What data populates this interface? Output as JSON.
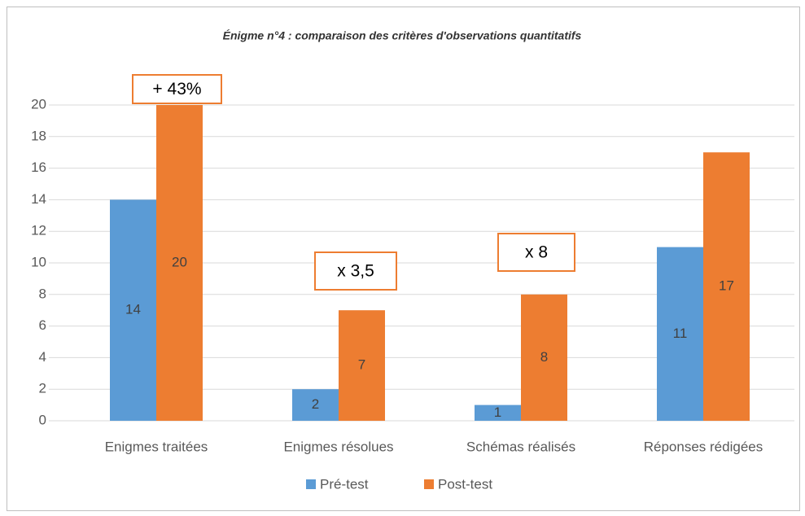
{
  "chart_data": {
    "type": "bar",
    "title": "Énigme n°4 : comparaison des critères d'observations quantitatifs",
    "categories": [
      "Enigmes traitées",
      "Enigmes résolues",
      "Schémas réalisés",
      "Réponses rédigées"
    ],
    "series": [
      {
        "name": "Pré-test",
        "color": "#5b9bd5",
        "values": [
          14,
          2,
          1,
          11
        ]
      },
      {
        "name": "Post-test",
        "color": "#ed7d31",
        "values": [
          20,
          7,
          8,
          17
        ]
      }
    ],
    "ylim": [
      0,
      20
    ],
    "yticks": [
      0,
      2,
      4,
      6,
      8,
      10,
      12,
      14,
      16,
      18,
      20
    ],
    "grid": true,
    "legend": "bottom",
    "annotations": [
      "+ 43%",
      "x 3,5",
      "x 8"
    ]
  }
}
